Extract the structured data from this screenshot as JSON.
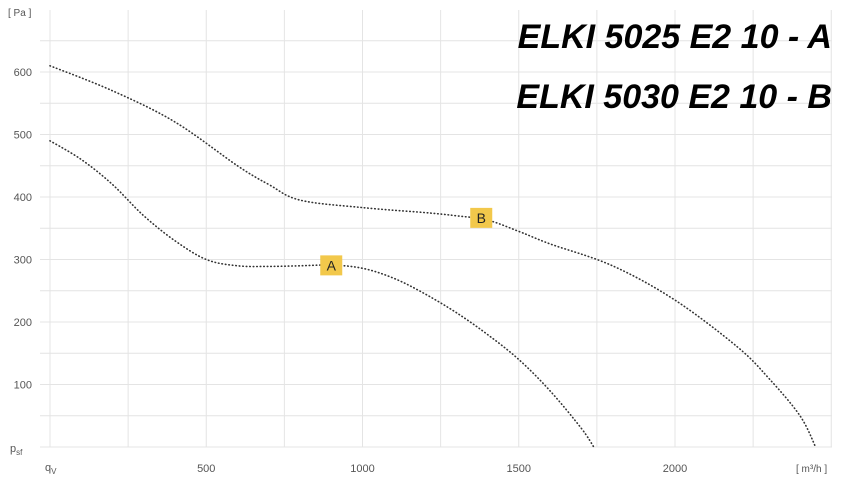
{
  "chart_data": {
    "type": "line",
    "title_lines": [
      "ELKI 5025 E2 10 - A",
      "ELKI 5030 E2 10 - B"
    ],
    "y_unit": "[ Pa ]",
    "x_unit": "[ m³/h ]",
    "y_axis_symbol": "p",
    "y_axis_symbol_sub": "sf",
    "x_axis_symbol": "q",
    "x_axis_symbol_sub": "V",
    "xlim": [
      0,
      2500
    ],
    "ylim": [
      0,
      700
    ],
    "x_ticks": [
      500,
      1000,
      1500,
      2000
    ],
    "y_ticks": [
      100,
      200,
      300,
      400,
      500,
      600
    ],
    "x_tick_labels": [
      "500",
      "1000",
      "1500",
      "2000"
    ],
    "y_tick_labels": [
      "100",
      "200",
      "300",
      "400",
      "500",
      "600"
    ],
    "grid": true,
    "series": [
      {
        "name": "A",
        "x": [
          0,
          100,
          200,
          300,
          400,
          500,
          600,
          700,
          800,
          900,
          1000,
          1100,
          1200,
          1300,
          1400,
          1500,
          1600,
          1700,
          1740
        ],
        "y": [
          490,
          460,
          420,
          370,
          330,
          300,
          290,
          289,
          290,
          291,
          286,
          270,
          245,
          215,
          180,
          140,
          90,
          30,
          0
        ]
      },
      {
        "name": "B",
        "x": [
          0,
          200,
          400,
          600,
          700,
          800,
          1000,
          1200,
          1300,
          1400,
          1500,
          1600,
          1800,
          2000,
          2200,
          2300,
          2400,
          2450
        ],
        "y": [
          610,
          570,
          520,
          450,
          420,
          395,
          383,
          375,
          370,
          363,
          345,
          325,
          290,
          235,
          160,
          110,
          50,
          0
        ]
      }
    ],
    "colors": {
      "label_box": "#f2c84b",
      "curve": "#333333",
      "grid": "#e4e4e4"
    }
  }
}
